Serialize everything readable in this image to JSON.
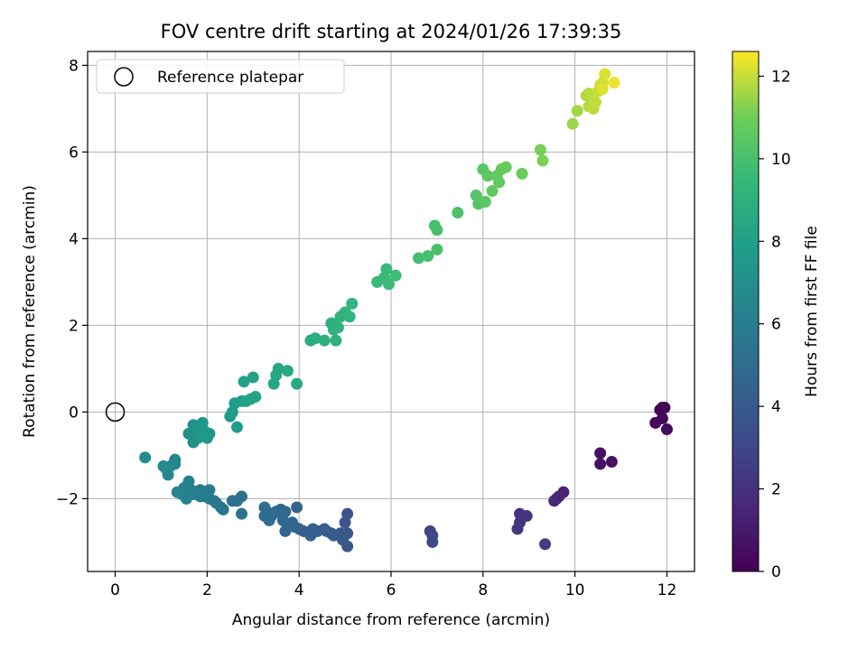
{
  "chart_data": {
    "type": "scatter",
    "title": "FOV centre drift starting at 2024/01/26 17:39:35",
    "xlabel": "Angular distance from reference (arcmin)",
    "ylabel": "Rotation from reference (arcmin)",
    "xlim": [
      -0.6,
      12.6
    ],
    "ylim": [
      -3.68,
      8.32
    ],
    "xticks": [
      0,
      2,
      4,
      6,
      8,
      10,
      12
    ],
    "yticks": [
      -2,
      0,
      2,
      4,
      6,
      8
    ],
    "ytick_labels": [
      "−2",
      "0",
      "2",
      "4",
      "6",
      "8"
    ],
    "grid": true,
    "legend": {
      "position": "top-left",
      "entries": [
        "Reference platepar"
      ]
    },
    "reference_point": {
      "x": 0,
      "y": 0
    },
    "colorbar": {
      "label": "Hours from first FF file",
      "range": [
        0,
        12.6
      ],
      "ticks": [
        0,
        2,
        4,
        6,
        8,
        10,
        12
      ],
      "colormap": "viridis"
    },
    "series": [
      {
        "points": [
          [
            11.9,
            0.1,
            0.1
          ],
          [
            11.95,
            0.1,
            0.15
          ],
          [
            11.85,
            0.05,
            0.2
          ],
          [
            11.9,
            -0.15,
            0.25
          ],
          [
            11.75,
            -0.25,
            0.3
          ],
          [
            12.0,
            -0.4,
            0.35
          ],
          [
            10.55,
            -0.95,
            0.6
          ],
          [
            10.55,
            -1.2,
            0.65
          ],
          [
            10.8,
            -1.15,
            0.7
          ],
          [
            9.75,
            -1.85,
            1.3
          ],
          [
            9.65,
            -1.95,
            1.4
          ],
          [
            9.6,
            -2.0,
            1.5
          ],
          [
            9.55,
            -2.05,
            1.6
          ],
          [
            8.8,
            -2.35,
            2.0
          ],
          [
            8.95,
            -2.4,
            2.1
          ],
          [
            8.8,
            -2.55,
            2.2
          ],
          [
            8.75,
            -2.7,
            2.3
          ],
          [
            9.35,
            -3.05,
            2.5
          ],
          [
            6.85,
            -2.75,
            3.0
          ],
          [
            6.9,
            -2.85,
            3.05
          ],
          [
            6.9,
            -3.0,
            3.1
          ],
          [
            5.05,
            -2.35,
            3.7
          ],
          [
            5.0,
            -2.55,
            3.75
          ],
          [
            5.05,
            -2.8,
            3.8
          ],
          [
            5.05,
            -3.1,
            3.85
          ],
          [
            4.9,
            -2.8,
            3.9
          ],
          [
            4.95,
            -2.95,
            3.95
          ],
          [
            4.75,
            -2.85,
            4.0
          ],
          [
            4.7,
            -2.8,
            4.05
          ],
          [
            4.6,
            -2.75,
            4.1
          ],
          [
            4.55,
            -2.7,
            4.15
          ],
          [
            4.4,
            -2.75,
            4.2
          ],
          [
            4.3,
            -2.7,
            4.25
          ],
          [
            4.25,
            -2.85,
            4.3
          ],
          [
            4.1,
            -2.75,
            4.35
          ],
          [
            4.0,
            -2.7,
            4.4
          ],
          [
            3.95,
            -2.2,
            4.45
          ],
          [
            3.9,
            -2.65,
            4.5
          ],
          [
            3.85,
            -2.55,
            4.55
          ],
          [
            3.75,
            -2.6,
            4.6
          ],
          [
            3.7,
            -2.75,
            4.65
          ],
          [
            3.65,
            -2.5,
            4.7
          ],
          [
            3.7,
            -2.3,
            4.75
          ],
          [
            3.6,
            -2.25,
            4.8
          ],
          [
            3.5,
            -2.3,
            4.85
          ],
          [
            3.4,
            -2.4,
            4.9
          ],
          [
            3.35,
            -2.5,
            4.95
          ],
          [
            3.3,
            -2.3,
            5.0
          ],
          [
            3.25,
            -2.4,
            5.05
          ],
          [
            3.25,
            -2.2,
            5.1
          ],
          [
            2.75,
            -1.95,
            5.2
          ],
          [
            2.65,
            -2.05,
            5.25
          ],
          [
            2.55,
            -2.05,
            5.3
          ],
          [
            2.75,
            -2.35,
            5.35
          ],
          [
            2.35,
            -2.25,
            5.5
          ],
          [
            2.3,
            -2.2,
            5.55
          ],
          [
            2.2,
            -2.1,
            5.6
          ],
          [
            2.15,
            -2.05,
            5.65
          ],
          [
            2.05,
            -2.0,
            5.7
          ],
          [
            2.05,
            -1.8,
            5.75
          ],
          [
            2.0,
            -1.85,
            5.8
          ],
          [
            1.95,
            -1.95,
            5.85
          ],
          [
            1.85,
            -1.95,
            5.9
          ],
          [
            1.85,
            -1.8,
            5.95
          ],
          [
            1.75,
            -1.85,
            6.0
          ],
          [
            1.7,
            -1.9,
            6.05
          ],
          [
            1.65,
            -1.8,
            6.1
          ],
          [
            1.6,
            -1.6,
            6.15
          ],
          [
            1.55,
            -1.85,
            6.2
          ],
          [
            1.55,
            -2.0,
            6.25
          ],
          [
            1.5,
            -1.75,
            6.3
          ],
          [
            1.45,
            -1.9,
            6.35
          ],
          [
            1.35,
            -1.85,
            6.4
          ],
          [
            1.3,
            -1.1,
            6.5
          ],
          [
            1.3,
            -1.2,
            6.55
          ],
          [
            1.2,
            -1.25,
            6.6
          ],
          [
            1.15,
            -1.45,
            6.65
          ],
          [
            1.1,
            -1.3,
            6.7
          ],
          [
            1.05,
            -1.25,
            6.75
          ],
          [
            0.65,
            -1.05,
            6.85
          ],
          [
            1.6,
            -0.5,
            7.0
          ],
          [
            1.7,
            -0.3,
            7.05
          ],
          [
            1.7,
            -0.7,
            7.1
          ],
          [
            1.75,
            -0.4,
            7.15
          ],
          [
            1.8,
            -0.6,
            7.2
          ],
          [
            1.85,
            -0.5,
            7.25
          ],
          [
            1.9,
            -0.25,
            7.3
          ],
          [
            1.95,
            -0.45,
            7.35
          ],
          [
            2.0,
            -0.6,
            7.4
          ],
          [
            2.05,
            -0.5,
            7.45
          ],
          [
            1.8,
            -0.4,
            7.5
          ],
          [
            1.9,
            -0.55,
            7.55
          ],
          [
            2.5,
            -0.1,
            7.7
          ],
          [
            2.55,
            0.0,
            7.75
          ],
          [
            2.6,
            0.2,
            7.8
          ],
          [
            2.65,
            -0.35,
            7.85
          ],
          [
            2.75,
            0.25,
            7.95
          ],
          [
            2.85,
            0.25,
            8.0
          ],
          [
            2.8,
            0.7,
            8.05
          ],
          [
            2.95,
            0.3,
            8.1
          ],
          [
            3.0,
            0.8,
            8.15
          ],
          [
            3.05,
            0.35,
            8.2
          ],
          [
            3.45,
            0.65,
            8.35
          ],
          [
            3.5,
            0.85,
            8.4
          ],
          [
            3.55,
            1.0,
            8.45
          ],
          [
            3.75,
            0.95,
            8.5
          ],
          [
            3.95,
            0.65,
            8.55
          ],
          [
            4.25,
            1.65,
            8.8
          ],
          [
            4.35,
            1.7,
            8.85
          ],
          [
            4.55,
            1.65,
            8.9
          ],
          [
            4.7,
            2.05,
            8.95
          ],
          [
            4.75,
            1.9,
            9.0
          ],
          [
            4.8,
            1.65,
            9.05
          ],
          [
            4.85,
            1.95,
            9.1
          ],
          [
            4.9,
            2.2,
            9.15
          ],
          [
            5.0,
            2.3,
            9.2
          ],
          [
            5.1,
            2.2,
            9.25
          ],
          [
            5.15,
            2.5,
            9.3
          ],
          [
            5.7,
            3.0,
            9.5
          ],
          [
            5.85,
            3.1,
            9.55
          ],
          [
            5.9,
            3.3,
            9.6
          ],
          [
            5.95,
            2.95,
            9.65
          ],
          [
            6.1,
            3.15,
            9.7
          ],
          [
            6.6,
            3.55,
            9.85
          ],
          [
            6.8,
            3.6,
            9.9
          ],
          [
            6.95,
            4.3,
            9.95
          ],
          [
            7.0,
            4.2,
            10.0
          ],
          [
            7.0,
            3.75,
            10.05
          ],
          [
            7.45,
            4.6,
            10.15
          ],
          [
            7.85,
            5.0,
            10.35
          ],
          [
            7.9,
            4.8,
            10.4
          ],
          [
            8.0,
            5.6,
            10.45
          ],
          [
            8.05,
            4.85,
            10.5
          ],
          [
            8.1,
            5.45,
            10.55
          ],
          [
            8.2,
            5.1,
            10.6
          ],
          [
            8.3,
            5.45,
            10.65
          ],
          [
            8.35,
            5.3,
            10.7
          ],
          [
            8.4,
            5.6,
            10.75
          ],
          [
            8.5,
            5.65,
            10.8
          ],
          [
            8.85,
            5.5,
            10.9
          ],
          [
            9.25,
            6.05,
            11.1
          ],
          [
            9.3,
            5.8,
            11.15
          ],
          [
            9.95,
            6.65,
            11.5
          ],
          [
            10.05,
            6.95,
            11.6
          ],
          [
            10.25,
            7.3,
            11.7
          ],
          [
            10.3,
            7.05,
            11.8
          ],
          [
            10.3,
            7.35,
            11.85
          ],
          [
            10.4,
            7.0,
            11.9
          ],
          [
            10.45,
            7.15,
            11.95
          ],
          [
            10.5,
            7.4,
            12.0
          ],
          [
            10.55,
            7.55,
            12.05
          ],
          [
            10.6,
            7.6,
            12.1
          ],
          [
            10.65,
            7.8,
            12.2
          ],
          [
            10.6,
            7.45,
            12.25
          ],
          [
            10.85,
            7.6,
            12.4
          ]
        ]
      }
    ]
  }
}
